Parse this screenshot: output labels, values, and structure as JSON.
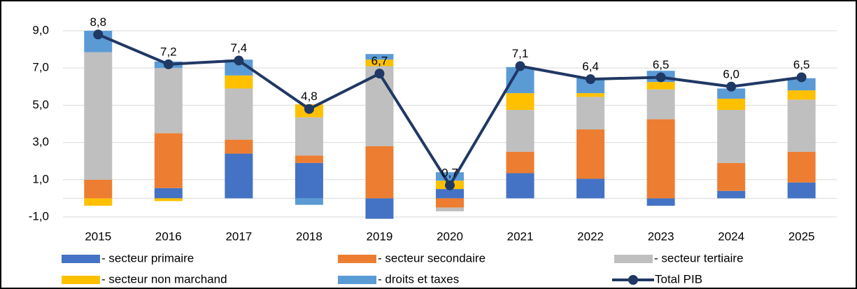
{
  "chart_data": {
    "type": "bar",
    "categories": [
      "2015",
      "2016",
      "2017",
      "2018",
      "2019",
      "2020",
      "2021",
      "2022",
      "2023",
      "2024",
      "2025"
    ],
    "series": [
      {
        "name": "- secteur primaire",
        "color": "#4472c4",
        "values": [
          0,
          0.55,
          2.4,
          1.9,
          -1.1,
          0.5,
          1.35,
          1.05,
          -0.4,
          0.4,
          0.85
        ]
      },
      {
        "name": "- secteur secondaire",
        "color": "#ed7d31",
        "values": [
          1.0,
          2.95,
          0.75,
          0.4,
          2.8,
          -0.5,
          1.15,
          2.65,
          4.25,
          1.5,
          1.65
        ]
      },
      {
        "name": "- secteur tertiaire",
        "color": "#bfbfbf",
        "values": [
          6.85,
          3.5,
          2.75,
          2.05,
          4.3,
          -0.2,
          2.25,
          1.75,
          1.6,
          2.85,
          2.8
        ]
      },
      {
        "name": "- secteur non marchand",
        "color": "#ffc000",
        "values": [
          -0.4,
          -0.15,
          0.7,
          0.7,
          0.35,
          0.45,
          0.9,
          0.2,
          0.4,
          0.6,
          0.5
        ]
      },
      {
        "name": "- droits et taxes",
        "color": "#5b9bd5",
        "values": [
          1.15,
          0.35,
          0.85,
          -0.35,
          0.3,
          0.45,
          1.4,
          0.8,
          0.6,
          0.55,
          0.65
        ]
      }
    ],
    "line": {
      "name": "Total PIB",
      "color": "#203864",
      "values": [
        8.8,
        7.2,
        7.4,
        4.8,
        6.7,
        0.7,
        7.1,
        6.4,
        6.5,
        6.0,
        6.5
      ],
      "value_labels": [
        "8,8",
        "7,2",
        "7,4",
        "4,8",
        "6,7",
        "0,7",
        "7,1",
        "6,4",
        "6,5",
        "6,0",
        "6,5"
      ]
    },
    "ylim": [
      -1,
      9.3
    ],
    "yticks": [
      {
        "value": -1,
        "label": "-1,0"
      },
      {
        "value": 1,
        "label": "1,0"
      },
      {
        "value": 3,
        "label": "3,0"
      },
      {
        "value": 5,
        "label": "5,0"
      },
      {
        "value": 7,
        "label": "7,0"
      },
      {
        "value": 9,
        "label": "9,0"
      }
    ],
    "grid": true
  }
}
